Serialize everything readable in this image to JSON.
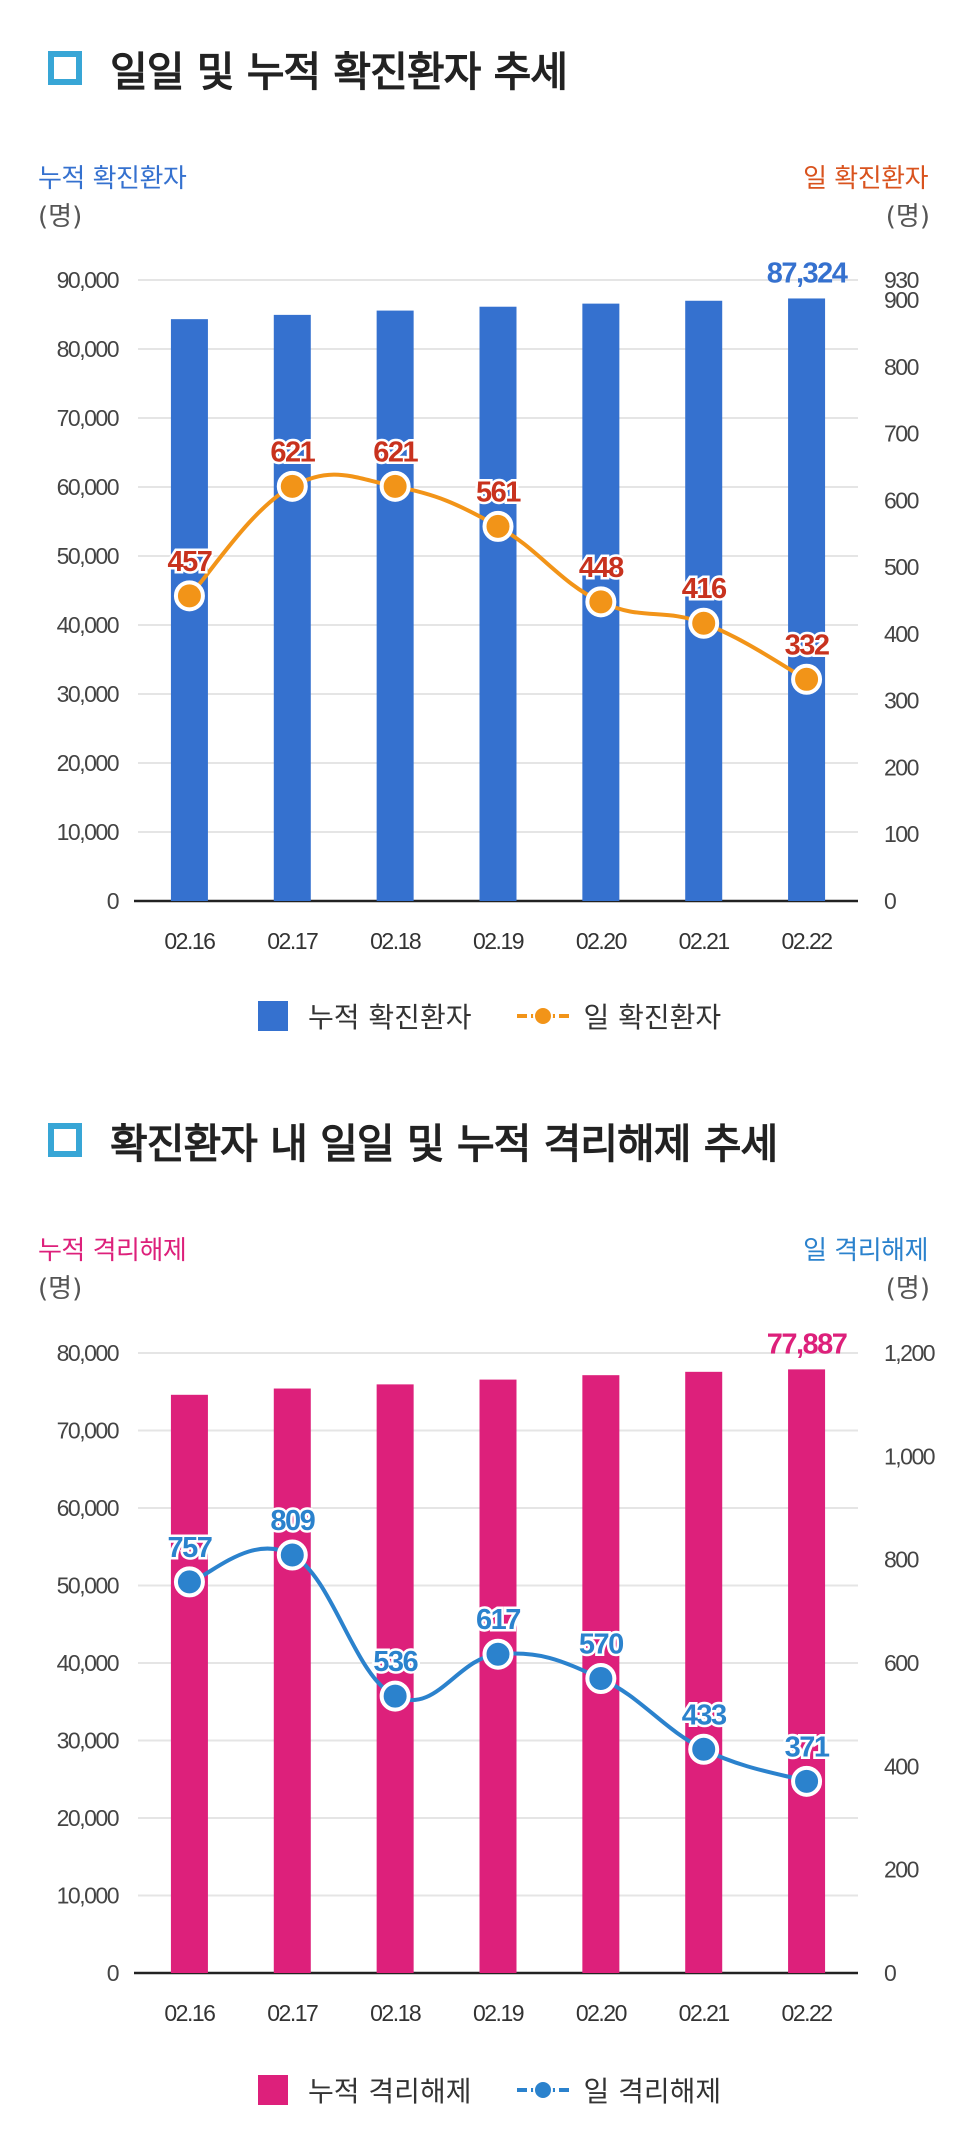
{
  "section1": {
    "title": "일일 및 누적 확진환자 추세",
    "left_axis_label": "누적 확진환자",
    "right_axis_label": "일 확진환자",
    "left_unit": "(명)",
    "right_unit": "(명)",
    "legend_bar": "누적 확진환자",
    "legend_line": "일 확진환자"
  },
  "section2": {
    "title": "확진환자 내 일일 및 누적 격리해제 추세",
    "left_axis_label": "누적 격리해제",
    "right_axis_label": "일 격리해제",
    "left_unit": "(명)",
    "right_unit": "(명)",
    "legend_bar": "누적 격리해제",
    "legend_line": "일 격리해제"
  },
  "colors": {
    "title_icon": "#38a6d6",
    "bar1": "#3571cf",
    "line1": "#f29418",
    "label1": "#c8321e",
    "bar2": "#dd207b",
    "line2": "#2b82cd",
    "label2": "#2b82cd",
    "grid": "#e5e5e5"
  },
  "chart_data": [
    {
      "type": "bar+line",
      "categories": [
        "02.16",
        "02.17",
        "02.18",
        "02.19",
        "02.20",
        "02.21",
        "02.22"
      ],
      "series": [
        {
          "name": "누적 확진환자",
          "type": "bar",
          "axis": "left",
          "values": [
            84325,
            84946,
            85567,
            86128,
            86576,
            86992,
            87324
          ],
          "labels": [
            "",
            "",
            "",
            "",
            "",
            "",
            "87,324"
          ]
        },
        {
          "name": "일 확진환자",
          "type": "line",
          "axis": "right",
          "values": [
            457,
            621,
            621,
            561,
            448,
            416,
            332
          ],
          "labels": [
            "457",
            "621",
            "621",
            "561",
            "448",
            "416",
            "332"
          ]
        }
      ],
      "left_ticks": [
        "0",
        "10,000",
        "20,000",
        "30,000",
        "40,000",
        "50,000",
        "60,000",
        "70,000",
        "80,000",
        "90,000"
      ],
      "left_ylim": [
        0,
        90000
      ],
      "right_ticks": [
        "0",
        "100",
        "200",
        "300",
        "400",
        "500",
        "600",
        "700",
        "800",
        "900",
        "930"
      ],
      "right_ylim": [
        0,
        930
      ]
    },
    {
      "type": "bar+line",
      "categories": [
        "02.16",
        "02.17",
        "02.18",
        "02.19",
        "02.20",
        "02.21",
        "02.22"
      ],
      "series": [
        {
          "name": "누적 격리해제",
          "type": "bar",
          "axis": "left",
          "values": [
            74606,
            75415,
            75951,
            76568,
            77138,
            77571,
            77887
          ],
          "labels": [
            "",
            "",
            "",
            "",
            "",
            "",
            "77,887"
          ]
        },
        {
          "name": "일 격리해제",
          "type": "line",
          "axis": "right",
          "values": [
            757,
            809,
            536,
            617,
            570,
            433,
            371
          ],
          "labels": [
            "757",
            "809",
            "536",
            "617",
            "570",
            "433",
            "371"
          ]
        }
      ],
      "left_ticks": [
        "0",
        "10,000",
        "20,000",
        "30,000",
        "40,000",
        "50,000",
        "60,000",
        "70,000",
        "80,000"
      ],
      "left_ylim": [
        0,
        80000
      ],
      "right_ticks": [
        "0",
        "200",
        "400",
        "600",
        "800",
        "1,000",
        "1,200"
      ],
      "right_ylim": [
        0,
        1200
      ]
    }
  ]
}
